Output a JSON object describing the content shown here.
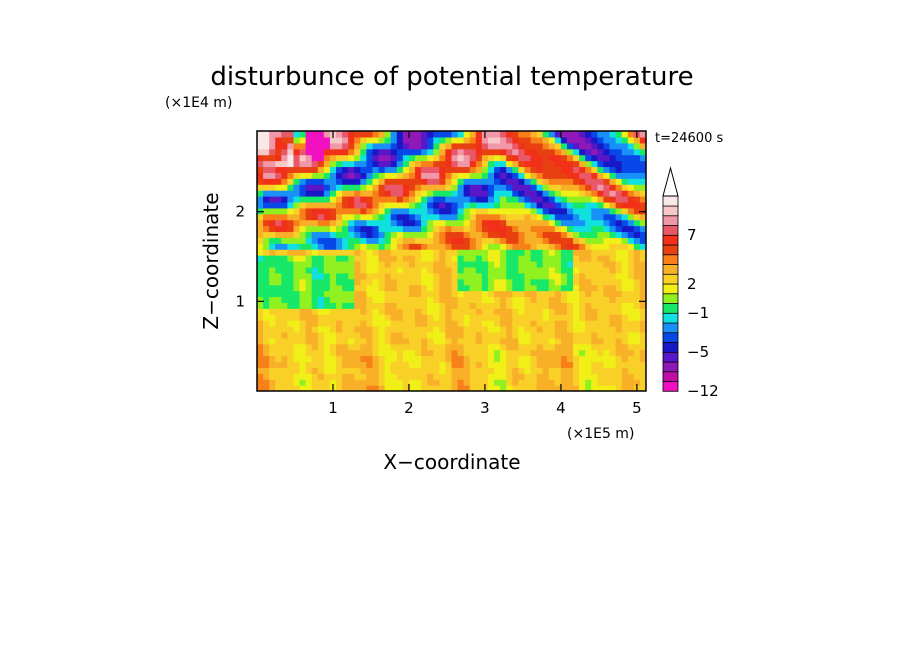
{
  "chart_data": {
    "type": "heatmap",
    "title": "disturbunce of potential temperature",
    "time_label": "t=24600 s",
    "xlabel": "X−coordinate",
    "ylabel": "Z−coordinate",
    "x_unit": "(×1E5 m)",
    "y_unit": "(×1E4 m)",
    "xlim": [
      0,
      5.12
    ],
    "ylim": [
      0,
      2.9
    ],
    "x_ticks": [
      "1",
      "2",
      "3",
      "4",
      "5"
    ],
    "x_tick_values": [
      1,
      2,
      3,
      4,
      5
    ],
    "y_ticks": [
      "1",
      "2"
    ],
    "y_tick_values": [
      1,
      2
    ],
    "colorbar": {
      "extend": "max",
      "levels": [
        -12,
        -10,
        -8,
        -6,
        -5,
        -4,
        -3,
        -2,
        -1,
        0,
        1,
        2,
        3,
        4,
        5,
        6,
        7,
        8,
        9,
        10,
        11
      ],
      "tick_labels": [
        "−12",
        "−5",
        "−1",
        "2",
        "7"
      ],
      "tick_values": [
        -12,
        -5,
        -1,
        2,
        7
      ],
      "colors": [
        "#f010c0",
        "#c010a8",
        "#9018b8",
        "#5818c8",
        "#1818c8",
        "#0848e8",
        "#1890f8",
        "#10e0e0",
        "#18e868",
        "#90f020",
        "#f0f018",
        "#f8d028",
        "#f8b028",
        "#f88018",
        "#e84010",
        "#f03018",
        "#e85868",
        "#f098a8",
        "#f8c8c8",
        "#f8e8e8"
      ]
    }
  }
}
